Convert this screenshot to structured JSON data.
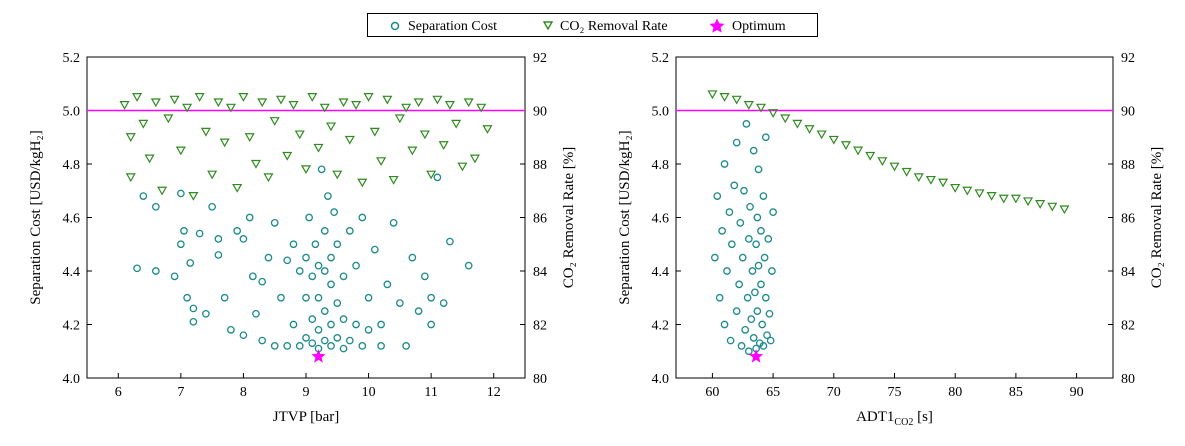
{
  "legend": {
    "items": [
      {
        "label": "Separation Cost",
        "marker": "open-circle",
        "color": "#1a8a8a"
      },
      {
        "label": "CO₂  Removal Rate",
        "marker": "open-triangle-down",
        "color": "#2e8b1e"
      },
      {
        "label": "Optimum",
        "marker": "star",
        "color": "#ff00ff"
      }
    ]
  },
  "colors": {
    "cost": "#1a8a8a",
    "removal": "#2e8b1e",
    "optimum": "#ff00ff",
    "reference_line": "#ff00ff"
  },
  "chart_data": [
    {
      "type": "scatter",
      "xlabel": "JTVP [bar]",
      "ylabel_left": "Separation Cost [USD/kgH₂]",
      "ylabel_right": "CO₂  Removal Rate [%]",
      "xlim": [
        5.5,
        12.5
      ],
      "ylim_left": [
        4.0,
        5.2
      ],
      "ylim_right": [
        80,
        92
      ],
      "xticks": [
        6,
        7,
        8,
        9,
        10,
        11,
        12
      ],
      "yticks_left": [
        4.0,
        4.2,
        4.4,
        4.6,
        4.8,
        5.0,
        5.2
      ],
      "yticks_right": [
        80,
        82,
        84,
        86,
        88,
        90,
        92
      ],
      "xtick_labels": [
        "6",
        "7",
        "8",
        "9",
        "10",
        "11",
        "12"
      ],
      "ytick_labels_left": [
        "4.0",
        "4.2",
        "4.4",
        "4.6",
        "4.8",
        "5.0",
        "5.2"
      ],
      "ytick_labels_right": [
        "80",
        "82",
        "84",
        "86",
        "88",
        "90",
        "92"
      ],
      "reference_line": {
        "axis": "right",
        "y": 90
      },
      "optimum": {
        "x": 9.2,
        "y": 4.08
      },
      "series": [
        {
          "name": "Separation Cost",
          "axis": "left",
          "marker": "open-circle",
          "points": [
            [
              6.3,
              4.41
            ],
            [
              6.4,
              4.68
            ],
            [
              6.6,
              4.4
            ],
            [
              6.6,
              4.64
            ],
            [
              6.9,
              4.38
            ],
            [
              7,
              4.5
            ],
            [
              7,
              4.69
            ],
            [
              7.05,
              4.55
            ],
            [
              7.1,
              4.3
            ],
            [
              7.15,
              4.43
            ],
            [
              7.2,
              4.26
            ],
            [
              7.2,
              4.21
            ],
            [
              7.3,
              4.54
            ],
            [
              7.4,
              4.24
            ],
            [
              7.5,
              4.64
            ],
            [
              7.6,
              4.52
            ],
            [
              7.6,
              4.46
            ],
            [
              7.7,
              4.3
            ],
            [
              7.8,
              4.18
            ],
            [
              7.9,
              4.55
            ],
            [
              8,
              4.52
            ],
            [
              8,
              4.16
            ],
            [
              8.1,
              4.6
            ],
            [
              8.15,
              4.38
            ],
            [
              8.2,
              4.24
            ],
            [
              8.3,
              4.14
            ],
            [
              8.3,
              4.36
            ],
            [
              8.4,
              4.45
            ],
            [
              8.5,
              4.58
            ],
            [
              8.5,
              4.12
            ],
            [
              8.6,
              4.3
            ],
            [
              8.7,
              4.12
            ],
            [
              8.7,
              4.44
            ],
            [
              8.8,
              4.2
            ],
            [
              8.8,
              4.5
            ],
            [
              8.9,
              4.12
            ],
            [
              8.9,
              4.4
            ],
            [
              9,
              4.15
            ],
            [
              9,
              4.3
            ],
            [
              9,
              4.45
            ],
            [
              9.05,
              4.6
            ],
            [
              9.1,
              4.13
            ],
            [
              9.1,
              4.22
            ],
            [
              9.1,
              4.38
            ],
            [
              9.15,
              4.5
            ],
            [
              9.2,
              4.11
            ],
            [
              9.2,
              4.18
            ],
            [
              9.2,
              4.3
            ],
            [
              9.2,
              4.42
            ],
            [
              9.25,
              4.78
            ],
            [
              9.3,
              4.14
            ],
            [
              9.3,
              4.25
            ],
            [
              9.3,
              4.4
            ],
            [
              9.3,
              4.55
            ],
            [
              9.35,
              4.68
            ],
            [
              9.4,
              4.12
            ],
            [
              9.4,
              4.2
            ],
            [
              9.4,
              4.35
            ],
            [
              9.4,
              4.45
            ],
            [
              9.45,
              4.62
            ],
            [
              9.5,
              4.15
            ],
            [
              9.5,
              4.28
            ],
            [
              9.5,
              4.5
            ],
            [
              9.6,
              4.11
            ],
            [
              9.6,
              4.22
            ],
            [
              9.6,
              4.38
            ],
            [
              9.7,
              4.14
            ],
            [
              9.7,
              4.55
            ],
            [
              9.8,
              4.2
            ],
            [
              9.8,
              4.42
            ],
            [
              9.9,
              4.12
            ],
            [
              9.9,
              4.6
            ],
            [
              10,
              4.3
            ],
            [
              10,
              4.18
            ],
            [
              10.1,
              4.48
            ],
            [
              10.2,
              4.12
            ],
            [
              10.2,
              4.2
            ],
            [
              10.3,
              4.35
            ],
            [
              10.4,
              4.58
            ],
            [
              10.5,
              4.28
            ],
            [
              10.6,
              4.12
            ],
            [
              10.7,
              4.45
            ],
            [
              10.8,
              4.25
            ],
            [
              10.9,
              4.38
            ],
            [
              11,
              4.2
            ],
            [
              11,
              4.3
            ],
            [
              11.1,
              4.75
            ],
            [
              11.2,
              4.28
            ],
            [
              11.3,
              4.51
            ],
            [
              11.6,
              4.42
            ]
          ]
        },
        {
          "name": "CO₂  Removal Rate",
          "axis": "right",
          "marker": "open-triangle-down",
          "points": [
            [
              6.1,
              90.2
            ],
            [
              6.2,
              89
            ],
            [
              6.2,
              87.5
            ],
            [
              6.3,
              90.5
            ],
            [
              6.4,
              89.5
            ],
            [
              6.5,
              88.2
            ],
            [
              6.6,
              90.3
            ],
            [
              6.7,
              87
            ],
            [
              6.8,
              89.7
            ],
            [
              6.9,
              90.4
            ],
            [
              7,
              88.5
            ],
            [
              7.1,
              90.1
            ],
            [
              7.2,
              86.8
            ],
            [
              7.3,
              90.5
            ],
            [
              7.4,
              89.2
            ],
            [
              7.5,
              87.6
            ],
            [
              7.6,
              90.3
            ],
            [
              7.7,
              88.8
            ],
            [
              7.8,
              90.1
            ],
            [
              7.9,
              87.1
            ],
            [
              8,
              90.5
            ],
            [
              8.1,
              89
            ],
            [
              8.2,
              88
            ],
            [
              8.3,
              90.3
            ],
            [
              8.4,
              87.5
            ],
            [
              8.5,
              89.6
            ],
            [
              8.6,
              90.4
            ],
            [
              8.7,
              88.3
            ],
            [
              8.8,
              90.2
            ],
            [
              8.9,
              89.1
            ],
            [
              9,
              87.8
            ],
            [
              9.1,
              90.5
            ],
            [
              9.2,
              88.6
            ],
            [
              9.3,
              90.1
            ],
            [
              9.4,
              89.4
            ],
            [
              9.5,
              87.6
            ],
            [
              9.6,
              90.3
            ],
            [
              9.7,
              88.9
            ],
            [
              9.8,
              90.2
            ],
            [
              9.9,
              87.3
            ],
            [
              10,
              90.5
            ],
            [
              10.1,
              89.2
            ],
            [
              10.2,
              88.1
            ],
            [
              10.3,
              90.4
            ],
            [
              10.4,
              87.4
            ],
            [
              10.5,
              89.7
            ],
            [
              10.6,
              90.1
            ],
            [
              10.7,
              88.5
            ],
            [
              10.8,
              90.3
            ],
            [
              10.9,
              89.1
            ],
            [
              11,
              87.6
            ],
            [
              11.1,
              90.4
            ],
            [
              11.2,
              88.7
            ],
            [
              11.3,
              90.2
            ],
            [
              11.4,
              89.5
            ],
            [
              11.5,
              87.9
            ],
            [
              11.6,
              90.3
            ],
            [
              11.7,
              88.2
            ],
            [
              11.8,
              90.1
            ],
            [
              11.9,
              89.3
            ]
          ]
        }
      ]
    },
    {
      "type": "scatter",
      "xlabel": "ADT1",
      "xlabel_subscript": "CO2",
      "xlabel_suffix": " [s]",
      "ylabel_left": "Separation Cost [USD/kgH₂]",
      "ylabel_right": "CO₂  Removal Rate [%]",
      "xlim": [
        57,
        93
      ],
      "ylim_left": [
        4.0,
        5.2
      ],
      "ylim_right": [
        80,
        92
      ],
      "xticks": [
        60,
        65,
        70,
        75,
        80,
        85,
        90
      ],
      "yticks_left": [
        4.0,
        4.2,
        4.4,
        4.6,
        4.8,
        5.0,
        5.2
      ],
      "yticks_right": [
        80,
        82,
        84,
        86,
        88,
        90,
        92
      ],
      "xtick_labels": [
        "60",
        "65",
        "70",
        "75",
        "80",
        "85",
        "90"
      ],
      "ytick_labels_left": [
        "4.0",
        "4.2",
        "4.4",
        "4.6",
        "4.8",
        "5.0",
        "5.2"
      ],
      "ytick_labels_right": [
        "80",
        "82",
        "84",
        "86",
        "88",
        "90",
        "92"
      ],
      "reference_line": {
        "axis": "right",
        "y": 90
      },
      "optimum": {
        "x": 63.6,
        "y": 4.08
      },
      "series": [
        {
          "name": "Separation Cost",
          "axis": "left",
          "marker": "open-circle",
          "points": [
            [
              60.2,
              4.45
            ],
            [
              60.4,
              4.68
            ],
            [
              60.6,
              4.3
            ],
            [
              60.8,
              4.55
            ],
            [
              61,
              4.8
            ],
            [
              61,
              4.2
            ],
            [
              61.2,
              4.4
            ],
            [
              61.4,
              4.62
            ],
            [
              61.5,
              4.14
            ],
            [
              61.6,
              4.5
            ],
            [
              61.8,
              4.72
            ],
            [
              62,
              4.25
            ],
            [
              62,
              4.88
            ],
            [
              62.2,
              4.35
            ],
            [
              62.3,
              4.58
            ],
            [
              62.4,
              4.12
            ],
            [
              62.5,
              4.45
            ],
            [
              62.6,
              4.7
            ],
            [
              62.7,
              4.18
            ],
            [
              62.8,
              4.95
            ],
            [
              62.9,
              4.3
            ],
            [
              63,
              4.52
            ],
            [
              63,
              4.1
            ],
            [
              63.1,
              4.64
            ],
            [
              63.2,
              4.22
            ],
            [
              63.3,
              4.4
            ],
            [
              63.4,
              4.85
            ],
            [
              63.4,
              4.15
            ],
            [
              63.5,
              4.32
            ],
            [
              63.6,
              4.5
            ],
            [
              63.6,
              4.11
            ],
            [
              63.7,
              4.6
            ],
            [
              63.7,
              4.25
            ],
            [
              63.8,
              4.42
            ],
            [
              63.8,
              4.78
            ],
            [
              63.9,
              4.13
            ],
            [
              64,
              4.35
            ],
            [
              64,
              4.55
            ],
            [
              64.1,
              4.2
            ],
            [
              64.2,
              4.68
            ],
            [
              64.2,
              4.12
            ],
            [
              64.3,
              4.45
            ],
            [
              64.4,
              4.3
            ],
            [
              64.4,
              4.9
            ],
            [
              64.5,
              4.16
            ],
            [
              64.6,
              4.52
            ],
            [
              64.7,
              4.24
            ],
            [
              64.8,
              4.14
            ],
            [
              64.9,
              4.4
            ],
            [
              65,
              4.62
            ]
          ]
        },
        {
          "name": "CO₂  Removal Rate",
          "axis": "right",
          "marker": "open-triangle-down",
          "points": [
            [
              60,
              90.6
            ],
            [
              61,
              90.5
            ],
            [
              62,
              90.4
            ],
            [
              63,
              90.2
            ],
            [
              64,
              90.1
            ],
            [
              65,
              89.9
            ],
            [
              66,
              89.7
            ],
            [
              67,
              89.5
            ],
            [
              68,
              89.3
            ],
            [
              69,
              89.1
            ],
            [
              70,
              88.9
            ],
            [
              71,
              88.7
            ],
            [
              72,
              88.5
            ],
            [
              73,
              88.3
            ],
            [
              74,
              88.1
            ],
            [
              75,
              87.9
            ],
            [
              76,
              87.7
            ],
            [
              77,
              87.5
            ],
            [
              78,
              87.4
            ],
            [
              79,
              87.3
            ],
            [
              80,
              87.1
            ],
            [
              81,
              87
            ],
            [
              82,
              86.9
            ],
            [
              83,
              86.8
            ],
            [
              84,
              86.7
            ],
            [
              85,
              86.7
            ],
            [
              86,
              86.6
            ],
            [
              87,
              86.5
            ],
            [
              88,
              86.4
            ],
            [
              89,
              86.3
            ]
          ]
        }
      ]
    }
  ]
}
